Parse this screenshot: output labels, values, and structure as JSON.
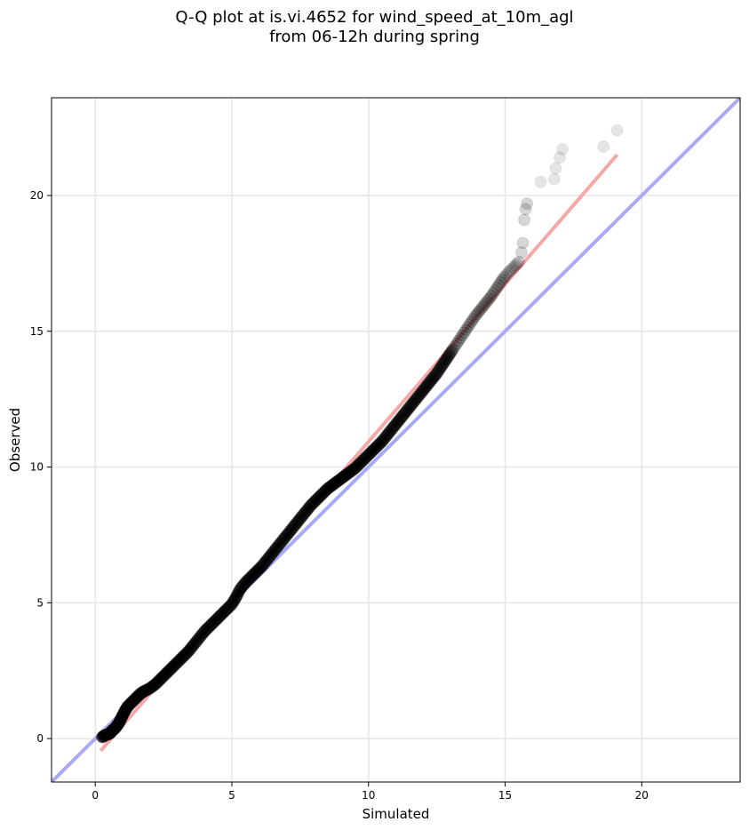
{
  "chart_data": {
    "type": "scatter",
    "title_line1": "Q-Q plot at is.vi.4652 for wind_speed_at_10m_agl",
    "title_line2": "from 06-12h during spring",
    "xlabel": "Simulated",
    "ylabel": "Observed",
    "xlim": [
      -1.6,
      23.6
    ],
    "ylim": [
      -1.6,
      23.6
    ],
    "xticks": [
      0,
      5,
      10,
      15,
      20
    ],
    "yticks": [
      0,
      5,
      10,
      15,
      20
    ],
    "grid": true,
    "identity_line": {
      "color": "#aaaaf4",
      "from": [
        -1.6,
        -1.6
      ],
      "to": [
        23.6,
        23.6
      ]
    },
    "fit_line": {
      "color": "#f4a8a8",
      "from": [
        0.2,
        -0.45
      ],
      "to": [
        19.1,
        21.5
      ]
    },
    "point_color": "#000000",
    "highlight_colors": {
      "low": "#00007a",
      "mid": "#6a0000"
    },
    "points": [
      [
        0.25,
        0.05
      ],
      [
        0.35,
        0.12
      ],
      [
        0.45,
        0.15
      ],
      [
        0.55,
        0.2
      ],
      [
        0.62,
        0.3
      ],
      [
        0.7,
        0.35
      ],
      [
        0.78,
        0.45
      ],
      [
        0.85,
        0.55
      ],
      [
        0.92,
        0.68
      ],
      [
        1.0,
        0.85
      ],
      [
        1.1,
        1.05
      ],
      [
        1.2,
        1.2
      ],
      [
        1.35,
        1.35
      ],
      [
        1.5,
        1.5
      ],
      [
        1.65,
        1.65
      ],
      [
        1.8,
        1.75
      ],
      [
        2.0,
        1.85
      ],
      [
        2.2,
        2.0
      ],
      [
        2.4,
        2.2
      ],
      [
        2.6,
        2.4
      ],
      [
        2.8,
        2.6
      ],
      [
        3.0,
        2.8
      ],
      [
        3.2,
        3.0
      ],
      [
        3.4,
        3.2
      ],
      [
        3.6,
        3.45
      ],
      [
        3.8,
        3.7
      ],
      [
        4.0,
        3.95
      ],
      [
        4.2,
        4.15
      ],
      [
        4.4,
        4.35
      ],
      [
        4.6,
        4.55
      ],
      [
        4.8,
        4.75
      ],
      [
        5.0,
        4.95
      ],
      [
        5.15,
        5.2
      ],
      [
        5.3,
        5.5
      ],
      [
        5.5,
        5.75
      ],
      [
        5.7,
        5.95
      ],
      [
        5.9,
        6.15
      ],
      [
        6.1,
        6.35
      ],
      [
        6.3,
        6.6
      ],
      [
        6.5,
        6.85
      ],
      [
        6.7,
        7.1
      ],
      [
        6.9,
        7.35
      ],
      [
        7.1,
        7.6
      ],
      [
        7.3,
        7.85
      ],
      [
        7.5,
        8.1
      ],
      [
        7.7,
        8.35
      ],
      [
        7.9,
        8.6
      ],
      [
        8.1,
        8.8
      ],
      [
        8.3,
        9.0
      ],
      [
        8.5,
        9.2
      ],
      [
        8.7,
        9.35
      ],
      [
        8.9,
        9.5
      ],
      [
        9.1,
        9.65
      ],
      [
        9.3,
        9.8
      ],
      [
        9.5,
        9.95
      ],
      [
        9.7,
        10.15
      ],
      [
        9.9,
        10.35
      ],
      [
        10.1,
        10.55
      ],
      [
        10.3,
        10.75
      ],
      [
        10.5,
        10.95
      ],
      [
        10.7,
        11.2
      ],
      [
        10.9,
        11.45
      ],
      [
        11.1,
        11.7
      ],
      [
        11.3,
        11.95
      ],
      [
        11.5,
        12.2
      ],
      [
        11.7,
        12.45
      ],
      [
        11.9,
        12.7
      ],
      [
        12.1,
        12.95
      ],
      [
        12.3,
        13.2
      ],
      [
        12.5,
        13.45
      ],
      [
        12.7,
        13.75
      ],
      [
        12.9,
        14.05
      ],
      [
        13.1,
        14.35
      ],
      [
        13.3,
        14.65
      ],
      [
        13.5,
        14.95
      ],
      [
        13.7,
        15.25
      ],
      [
        13.9,
        15.55
      ],
      [
        14.1,
        15.8
      ],
      [
        14.3,
        16.05
      ],
      [
        14.5,
        16.3
      ],
      [
        14.7,
        16.6
      ],
      [
        14.9,
        16.9
      ],
      [
        15.1,
        17.15
      ],
      [
        15.3,
        17.35
      ],
      [
        15.5,
        17.55
      ],
      [
        15.6,
        17.9
      ],
      [
        15.65,
        18.25
      ],
      [
        15.7,
        19.1
      ],
      [
        15.75,
        19.5
      ],
      [
        15.8,
        19.7
      ],
      [
        16.3,
        20.5
      ],
      [
        16.8,
        20.6
      ],
      [
        16.85,
        21.0
      ],
      [
        17.0,
        21.4
      ],
      [
        17.1,
        21.7
      ],
      [
        18.6,
        21.8
      ],
      [
        19.1,
        22.4
      ]
    ]
  }
}
